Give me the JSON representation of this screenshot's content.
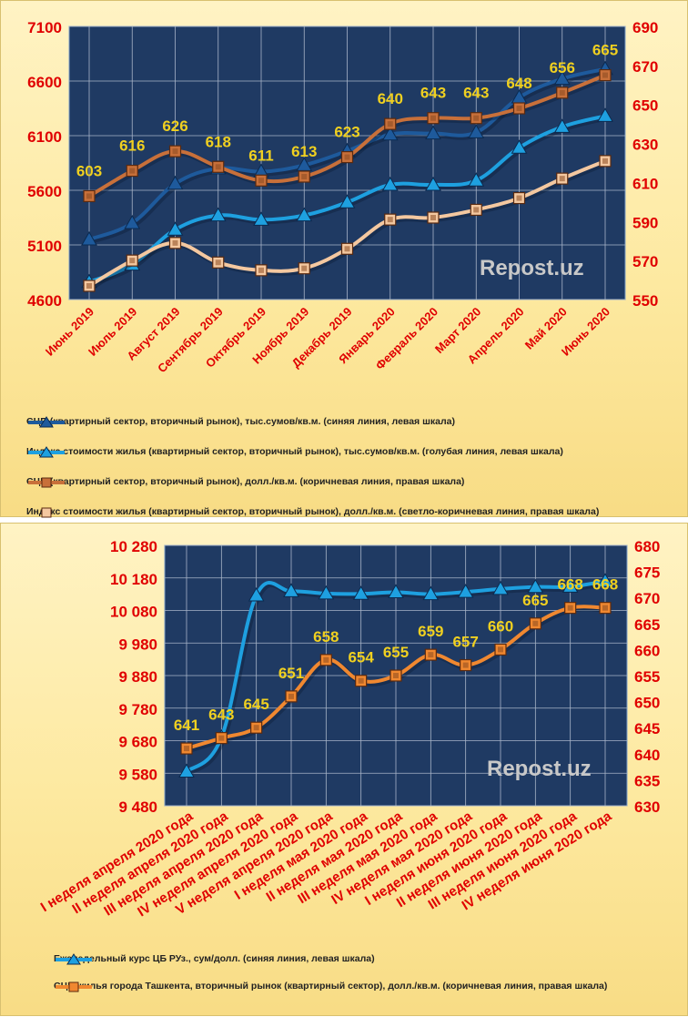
{
  "colors": {
    "plot_bg": "#1f3a63",
    "grid": "#a8b4c8",
    "axis_text": "#e00000",
    "label_text": "#f0d020",
    "series_dark_blue": "#1e5a9c",
    "series_light_blue": "#1ea0e0",
    "series_brown": "#c8703a",
    "series_light_brown": "#f4c8a0",
    "series_orange": "#f08830"
  },
  "watermark": "Repost.uz",
  "chart_data": [
    {
      "type": "line",
      "categories": [
        "Июнь 2019",
        "Июль 2019",
        "Август 2019",
        "Сентябрь 2019",
        "Октябрь 2019",
        "Ноябрь 2019",
        "Декабрь 2019",
        "Январь 2020",
        "Февраль 2020",
        "Март 2020",
        "Апрель 2020",
        "Май 2020",
        "Июнь 2020"
      ],
      "y_left": {
        "ylim": [
          4600,
          7100
        ],
        "ticks": [
          "4600",
          "5100",
          "5600",
          "6100",
          "6600",
          "7100"
        ]
      },
      "y_right": {
        "ylim": [
          550,
          690
        ],
        "ticks": [
          "550",
          "570",
          "590",
          "610",
          "630",
          "650",
          "670",
          "690"
        ]
      },
      "grid": true,
      "legend_position": "bottom",
      "series": [
        {
          "name": "СЦП (квартирный сектор, вторичный рынок), тыс.сумов/кв.м. (синяя линия,  левая шкала)",
          "axis": "left",
          "color": "#1e5a9c",
          "marker": "triangle",
          "values": [
            5150,
            5300,
            5660,
            5800,
            5770,
            5830,
            5960,
            6110,
            6120,
            6130,
            6450,
            6620,
            6710
          ]
        },
        {
          "name": "Индекс стоимости жилья (квартирный сектор, вторичный рынок),  тыс.сумов/кв.м. (голубая линия,  левая шкала)",
          "axis": "left",
          "color": "#1ea0e0",
          "marker": "triangle",
          "values": [
            4760,
            4920,
            5240,
            5370,
            5330,
            5370,
            5490,
            5650,
            5650,
            5690,
            5990,
            6180,
            6280
          ]
        },
        {
          "name": "СЦП (квартирный сектор, вторичный рынок),  долл./кв.м. (коричневая линия,  правая шкала)",
          "axis": "right",
          "color": "#c8703a",
          "marker": "square",
          "values": [
            603,
            616,
            626,
            618,
            611,
            613,
            623,
            640,
            643,
            643,
            648,
            656,
            665
          ],
          "labels": [
            "603",
            "616",
            "626",
            "618",
            "611",
            "613",
            "623",
            "640",
            "643",
            "643",
            "648",
            "656",
            "665"
          ]
        },
        {
          "name": "Индекс стоимости жилья (квартирный сектор, вторичный рынок),  долл./кв.м. (светло-коричневая линия,  правая шкала)",
          "axis": "right",
          "color": "#f4c8a0",
          "marker": "square",
          "values": [
            557,
            570,
            579,
            569,
            565,
            566,
            576,
            591,
            592,
            596,
            602,
            612,
            621
          ]
        }
      ]
    },
    {
      "type": "line",
      "categories": [
        "I неделя апреля 2020 года",
        "II неделя апреля 2020 года",
        "III неделя апреля 2020 года",
        "IV неделя апреля 2020 года",
        "V неделя апреля 2020 года",
        "I неделя мая 2020 года",
        "II неделя мая 2020 года",
        "III неделя мая 2020 года",
        "IV неделя мая 2020 года",
        "I неделя июня 2020 года",
        "II неделя июня 2020 года",
        "III неделя июня 2020 года",
        "IV неделя июня 2020 года"
      ],
      "y_left": {
        "ylim": [
          9480,
          10280
        ],
        "ticks": [
          "9 480",
          "9 580",
          "9 680",
          "9 780",
          "9 880",
          "9 980",
          "10 080",
          "10 180",
          "10 280"
        ]
      },
      "y_right": {
        "ylim": [
          630,
          680
        ],
        "ticks": [
          "630",
          "635",
          "640",
          "645",
          "650",
          "655",
          "660",
          "665",
          "670",
          "675",
          "680"
        ]
      },
      "grid": true,
      "legend_position": "bottom",
      "series": [
        {
          "name": "Еженедельный курс ЦБ РУз., сум/долл. (синяя линия, левая шкала)",
          "axis": "left",
          "color": "#1ea0e0",
          "marker": "triangle",
          "values": [
            9585,
            9690,
            10126,
            10139,
            10132,
            10131,
            10136,
            10130,
            10137,
            10146,
            10152,
            10153,
            10170
          ]
        },
        {
          "name": "СЦП жилья города Ташкента, вторичный рынок (квартирный сектор), долл./кв.м. (коричневая линия, правая шкала)",
          "axis": "right",
          "color": "#f08830",
          "marker": "square",
          "values": [
            641,
            643,
            645,
            651,
            658,
            654,
            655,
            659,
            657,
            660,
            665,
            668,
            668
          ],
          "labels": [
            "641",
            "643",
            "645",
            "651",
            "658",
            "654",
            "655",
            "659",
            "657",
            "660",
            "665",
            "668",
            "668"
          ]
        }
      ]
    }
  ]
}
